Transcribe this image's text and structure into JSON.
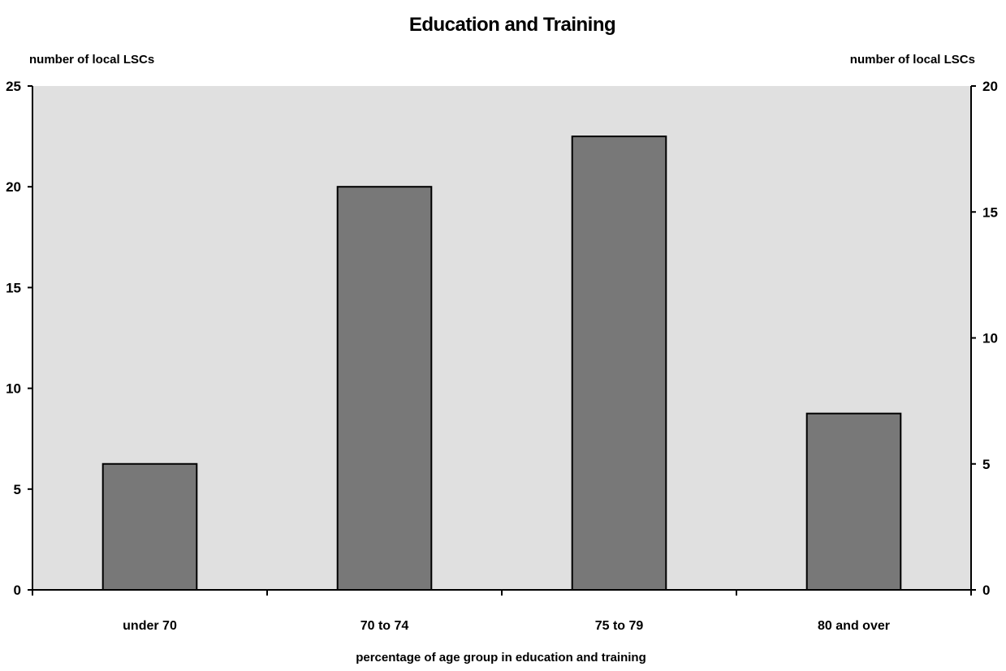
{
  "chart_data": {
    "type": "bar",
    "title": "Education and Training",
    "xlabel": "percentage of age group in education and training",
    "ylabel_left": "number of local LSCs",
    "ylabel_right": "number of local LSCs",
    "categories": [
      "under 70",
      "70 to 74",
      "75 to 79",
      "80 and over"
    ],
    "series": [
      {
        "values": [
          5,
          16,
          18,
          7
        ]
      }
    ],
    "y_right_lim": [
      0,
      20
    ],
    "y_right_ticks": [
      0,
      5,
      10,
      15,
      20
    ],
    "y_left_lim": [
      0,
      25
    ],
    "y_left_ticks": [
      0,
      5,
      10,
      15,
      20,
      25
    ],
    "grid": false,
    "legend": "none",
    "colors": {
      "plot_background": "#e0e0e0",
      "bar_fill": "#787878",
      "bar_stroke": "#000000",
      "axis": "#000000"
    }
  }
}
